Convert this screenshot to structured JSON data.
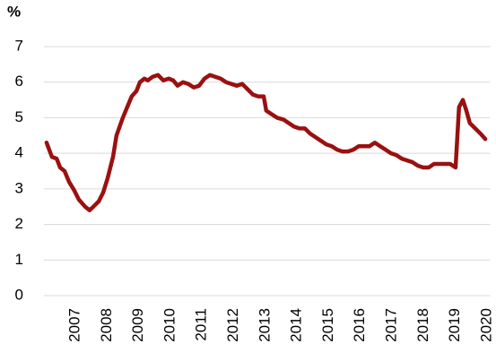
{
  "chart_data": {
    "type": "line",
    "y_label": "%",
    "x": [
      2006.09,
      2006.26,
      2006.41,
      2006.52,
      2006.66,
      2006.8,
      2006.97,
      2007.11,
      2007.31,
      2007.45,
      2007.57,
      2007.74,
      2007.88,
      2008.02,
      2008.19,
      2008.3,
      2008.5,
      2008.64,
      2008.78,
      2008.93,
      2009.04,
      2009.18,
      2009.29,
      2009.44,
      2009.61,
      2009.78,
      2009.95,
      2010.09,
      2010.23,
      2010.4,
      2010.57,
      2010.74,
      2010.91,
      2011.08,
      2011.25,
      2011.42,
      2011.59,
      2011.76,
      2011.93,
      2012.1,
      2012.27,
      2012.44,
      2012.61,
      2012.78,
      2012.95,
      2013.03,
      2013.2,
      2013.37,
      2013.57,
      2013.74,
      2013.91,
      2014.08,
      2014.25,
      2014.42,
      2014.59,
      2014.76,
      2014.93,
      2015.1,
      2015.27,
      2015.44,
      2015.61,
      2015.78,
      2015.95,
      2016.12,
      2016.29,
      2016.46,
      2016.63,
      2016.8,
      2016.97,
      2017.14,
      2017.31,
      2017.48,
      2017.65,
      2017.82,
      2017.99,
      2018.16,
      2018.33,
      2018.5,
      2018.67,
      2018.84,
      2019.01,
      2019.12,
      2019.24,
      2019.35,
      2019.46,
      2019.63,
      2019.8,
      2019.95
    ],
    "series": [
      {
        "color": "#9b1010",
        "values": [
          4.3,
          3.9,
          3.85,
          3.6,
          3.5,
          3.2,
          2.95,
          2.7,
          2.5,
          2.4,
          2.5,
          2.65,
          2.9,
          3.3,
          3.9,
          4.5,
          5.0,
          5.3,
          5.6,
          5.75,
          6.0,
          6.1,
          6.05,
          6.15,
          6.2,
          6.05,
          6.1,
          6.05,
          5.9,
          6.0,
          5.95,
          5.85,
          5.9,
          6.1,
          6.2,
          6.15,
          6.1,
          6.0,
          5.95,
          5.9,
          5.95,
          5.8,
          5.65,
          5.6,
          5.6,
          5.2,
          5.1,
          5.0,
          4.95,
          4.85,
          4.75,
          4.7,
          4.7,
          4.55,
          4.45,
          4.35,
          4.25,
          4.2,
          4.1,
          4.05,
          4.05,
          4.1,
          4.2,
          4.2,
          4.2,
          4.3,
          4.2,
          4.1,
          4.0,
          3.95,
          3.85,
          3.8,
          3.75,
          3.65,
          3.6,
          3.6,
          3.7,
          3.7,
          3.7,
          3.7,
          3.6,
          5.3,
          5.5,
          5.2,
          4.85,
          4.7,
          4.55,
          4.4
        ]
      }
    ],
    "xlim": [
      2006.0,
      2020.1
    ],
    "xticks": [
      2007,
      2008,
      2009,
      2010,
      2011,
      2012,
      2013,
      2014,
      2015,
      2016,
      2017,
      2018,
      2019,
      2020
    ],
    "ylim": [
      0,
      7
    ],
    "yticks": [
      0,
      1,
      2,
      3,
      4,
      5,
      6,
      7
    ],
    "grid": true
  }
}
